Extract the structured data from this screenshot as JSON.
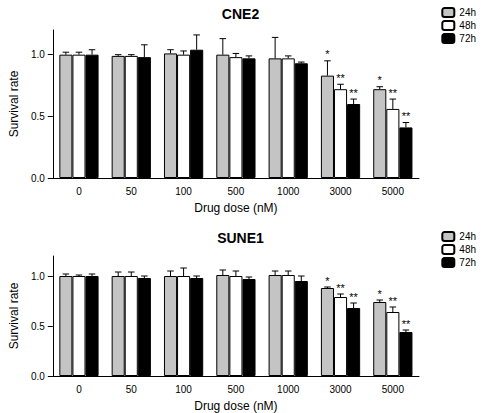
{
  "chart_data": [
    {
      "type": "bar",
      "title": "CNE2",
      "x_label": "Drug dose (nM)",
      "y_label": "Survival rate",
      "categories": [
        "0",
        "50",
        "100",
        "500",
        "1000",
        "3000",
        "5000"
      ],
      "series": [
        {
          "name": "24h",
          "color": "#c4c4c4",
          "values": [
            1.0,
            0.99,
            1.01,
            1.0,
            0.97,
            0.83,
            0.72
          ],
          "errors": [
            0.02,
            0.01,
            0.03,
            0.13,
            0.17,
            0.12,
            0.02
          ],
          "significance": [
            null,
            null,
            null,
            null,
            null,
            "*",
            "*"
          ]
        },
        {
          "name": "48h",
          "color": "#ffffff",
          "values": [
            1.0,
            0.99,
            1.0,
            0.98,
            0.97,
            0.72,
            0.56
          ],
          "errors": [
            0.02,
            0.01,
            0.03,
            0.03,
            0.02,
            0.04,
            0.08
          ],
          "significance": [
            null,
            null,
            null,
            null,
            null,
            "**",
            "**"
          ]
        },
        {
          "name": "72h",
          "color": "#000000",
          "values": [
            1.0,
            0.98,
            1.04,
            0.97,
            0.93,
            0.6,
            0.41
          ],
          "errors": [
            0.04,
            0.1,
            0.12,
            0.02,
            0.01,
            0.04,
            0.04
          ],
          "significance": [
            null,
            null,
            null,
            null,
            null,
            "**",
            "**"
          ]
        }
      ],
      "ylim": [
        0,
        1.2
      ],
      "yticks": [
        {
          "value": 0,
          "label": "0.0"
        },
        {
          "value": 0.5,
          "label": "0.5"
        },
        {
          "value": 1.0,
          "label": "1.0"
        }
      ],
      "grid": false,
      "legend": "top right"
    },
    {
      "type": "bar",
      "title": "SUNE1",
      "x_label": "Drug dose (nM)",
      "y_label": "Survival rate",
      "categories": [
        "0",
        "50",
        "100",
        "500",
        "1000",
        "3000",
        "5000"
      ],
      "series": [
        {
          "name": "24h",
          "color": "#c4c4c4",
          "values": [
            1.0,
            1.0,
            1.0,
            1.01,
            1.01,
            0.88,
            0.74
          ],
          "errors": [
            0.02,
            0.04,
            0.05,
            0.05,
            0.04,
            0.01,
            0.02
          ],
          "significance": [
            null,
            null,
            null,
            null,
            null,
            "*",
            "*"
          ]
        },
        {
          "name": "48h",
          "color": "#ffffff",
          "values": [
            1.0,
            1.0,
            1.0,
            1.0,
            1.01,
            0.79,
            0.64
          ],
          "errors": [
            0.01,
            0.04,
            0.08,
            0.05,
            0.04,
            0.03,
            0.05
          ],
          "significance": [
            null,
            null,
            null,
            null,
            null,
            "**",
            "**"
          ]
        },
        {
          "name": "72h",
          "color": "#000000",
          "values": [
            1.0,
            0.98,
            0.98,
            0.97,
            0.95,
            0.68,
            0.44
          ],
          "errors": [
            0.02,
            0.02,
            0.02,
            0.02,
            0.05,
            0.05,
            0.02
          ],
          "significance": [
            null,
            null,
            null,
            null,
            null,
            "**",
            "**"
          ]
        }
      ],
      "ylim": [
        0,
        1.2
      ],
      "yticks": [
        {
          "value": 0,
          "label": "0.0"
        },
        {
          "value": 0.5,
          "label": "0.5"
        },
        {
          "value": 1.0,
          "label": "1.0"
        }
      ],
      "grid": false,
      "legend": "top right"
    }
  ]
}
